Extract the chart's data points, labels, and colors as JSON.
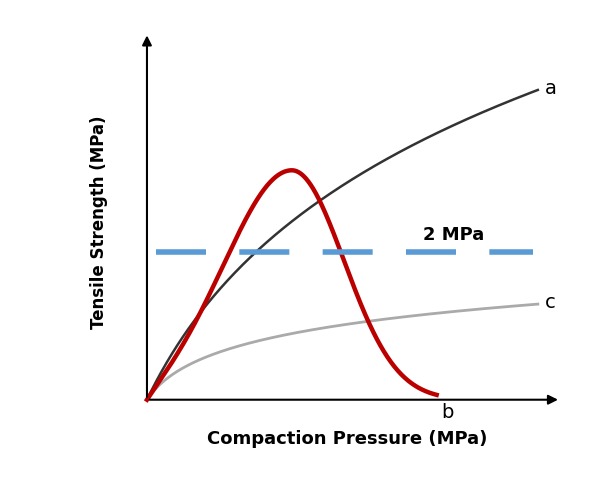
{
  "title": "",
  "xlabel": "Compaction Pressure (MPa)",
  "ylabel": "Tensile Strength (MPa)",
  "xlabel_fontsize": 13,
  "ylabel_fontsize": 12,
  "xlabel_fontweight": "bold",
  "ylabel_fontweight": "bold",
  "background_color": "#ffffff",
  "curve_a_color": "#333333",
  "curve_b_color": "#bb0000",
  "curve_c_color": "#aaaaaa",
  "dashed_line_color": "#5b9bd5",
  "dashed_line_y": 0.455,
  "dashed_label": "2 MPa",
  "dashed_label_fontsize": 13,
  "dashed_label_fontweight": "bold",
  "label_a": "a",
  "label_b": "b",
  "label_c": "c",
  "label_fontsize": 14,
  "curve_a_lw": 1.8,
  "curve_b_lw": 3.2,
  "curve_c_lw": 2.0,
  "dashed_lw": 4.0,
  "xlim": [
    -0.02,
    1.05
  ],
  "ylim": [
    -0.02,
    1.05
  ]
}
